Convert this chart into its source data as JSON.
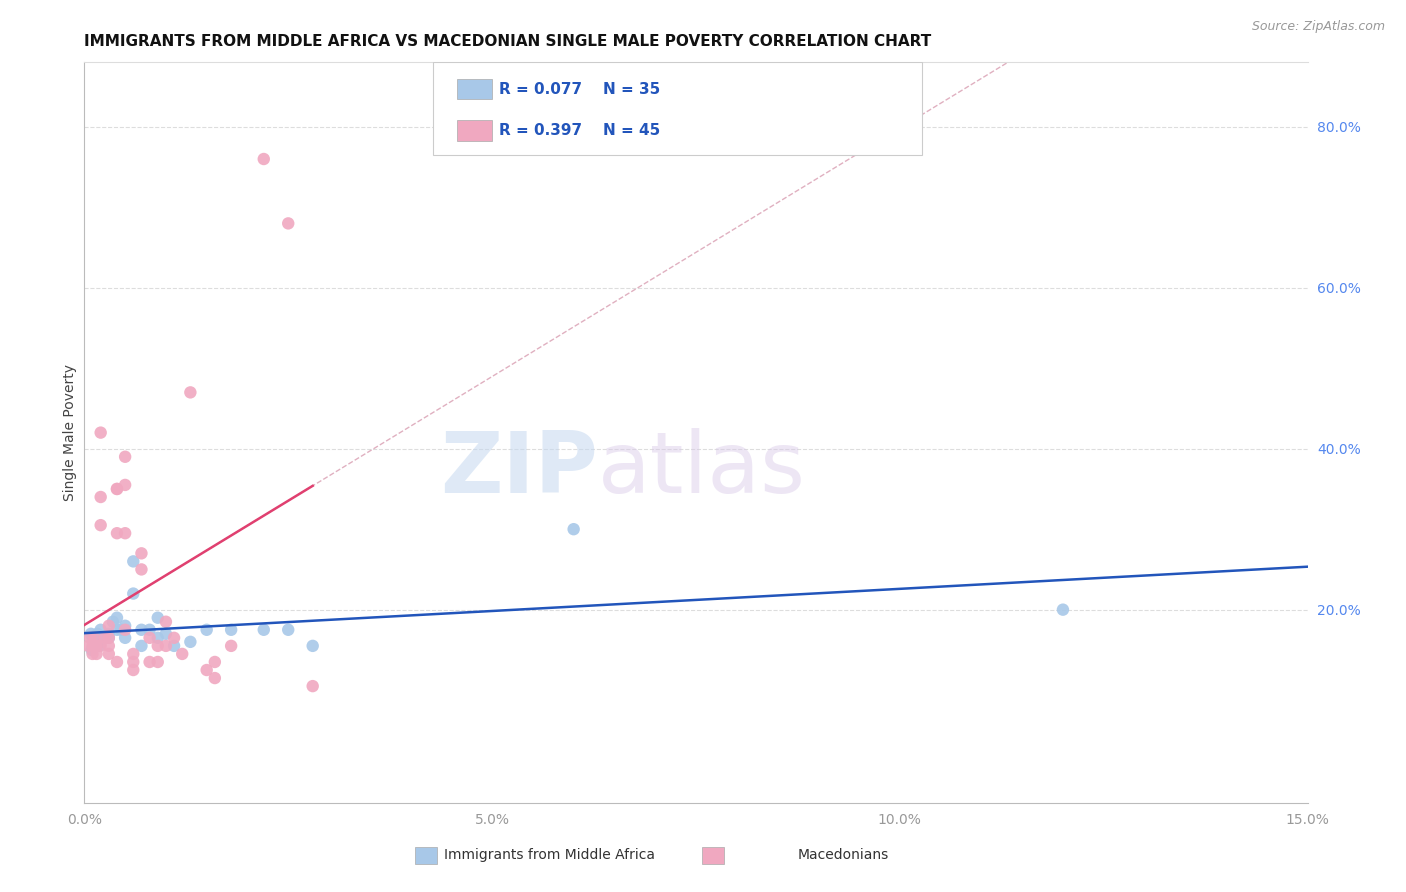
{
  "title": "IMMIGRANTS FROM MIDDLE AFRICA VS MACEDONIAN SINGLE MALE POVERTY CORRELATION CHART",
  "source": "Source: ZipAtlas.com",
  "ylabel": "Single Male Poverty",
  "xlim": [
    0.0,
    0.15
  ],
  "ylim": [
    -0.04,
    0.88
  ],
  "xticks": [
    0.0,
    0.05,
    0.1,
    0.15
  ],
  "xtick_labels": [
    "0.0%",
    "5.0%",
    "10.0%",
    "15.0%"
  ],
  "yticks_right": [
    0.2,
    0.4,
    0.6,
    0.8
  ],
  "ytick_labels_right": [
    "20.0%",
    "40.0%",
    "60.0%",
    "80.0%"
  ],
  "background_color": "#ffffff",
  "grid_color": "#dddddd",
  "series1_color": "#a8c8e8",
  "series2_color": "#f0a8c0",
  "series1_line_color": "#2255bb",
  "series2_line_color": "#e04070",
  "series2_dash_color": "#e0b0c0",
  "legend_label1": "Immigrants from Middle Africa",
  "legend_label2": "Macedonians",
  "R1": "0.077",
  "N1": "35",
  "R2": "0.397",
  "N2": "45",
  "series1_x": [
    0.0008,
    0.0009,
    0.001,
    0.0012,
    0.0013,
    0.0015,
    0.0016,
    0.0018,
    0.002,
    0.002,
    0.003,
    0.003,
    0.0035,
    0.004,
    0.004,
    0.0045,
    0.005,
    0.005,
    0.006,
    0.006,
    0.007,
    0.007,
    0.008,
    0.009,
    0.009,
    0.01,
    0.011,
    0.013,
    0.015,
    0.018,
    0.022,
    0.025,
    0.028,
    0.06,
    0.12
  ],
  "series1_y": [
    0.17,
    0.15,
    0.165,
    0.16,
    0.155,
    0.165,
    0.17,
    0.155,
    0.175,
    0.16,
    0.165,
    0.17,
    0.185,
    0.175,
    0.19,
    0.175,
    0.18,
    0.165,
    0.22,
    0.26,
    0.155,
    0.175,
    0.175,
    0.165,
    0.19,
    0.17,
    0.155,
    0.16,
    0.175,
    0.175,
    0.175,
    0.175,
    0.155,
    0.3,
    0.2
  ],
  "series2_x": [
    0.0005,
    0.0007,
    0.001,
    0.001,
    0.0012,
    0.0015,
    0.0015,
    0.002,
    0.002,
    0.002,
    0.002,
    0.0025,
    0.003,
    0.003,
    0.003,
    0.003,
    0.004,
    0.004,
    0.004,
    0.004,
    0.005,
    0.005,
    0.005,
    0.005,
    0.006,
    0.006,
    0.006,
    0.007,
    0.007,
    0.008,
    0.008,
    0.009,
    0.009,
    0.01,
    0.01,
    0.011,
    0.012,
    0.013,
    0.015,
    0.016,
    0.016,
    0.018,
    0.022,
    0.025,
    0.028
  ],
  "series2_y": [
    0.155,
    0.165,
    0.155,
    0.145,
    0.165,
    0.155,
    0.145,
    0.42,
    0.34,
    0.305,
    0.155,
    0.165,
    0.18,
    0.165,
    0.155,
    0.145,
    0.35,
    0.35,
    0.295,
    0.135,
    0.39,
    0.355,
    0.295,
    0.175,
    0.145,
    0.135,
    0.125,
    0.27,
    0.25,
    0.165,
    0.135,
    0.155,
    0.135,
    0.185,
    0.155,
    0.165,
    0.145,
    0.47,
    0.125,
    0.115,
    0.135,
    0.155,
    0.76,
    0.68,
    0.105
  ],
  "watermark_zip": "ZIP",
  "watermark_atlas": "atlas",
  "marker_size": 80
}
